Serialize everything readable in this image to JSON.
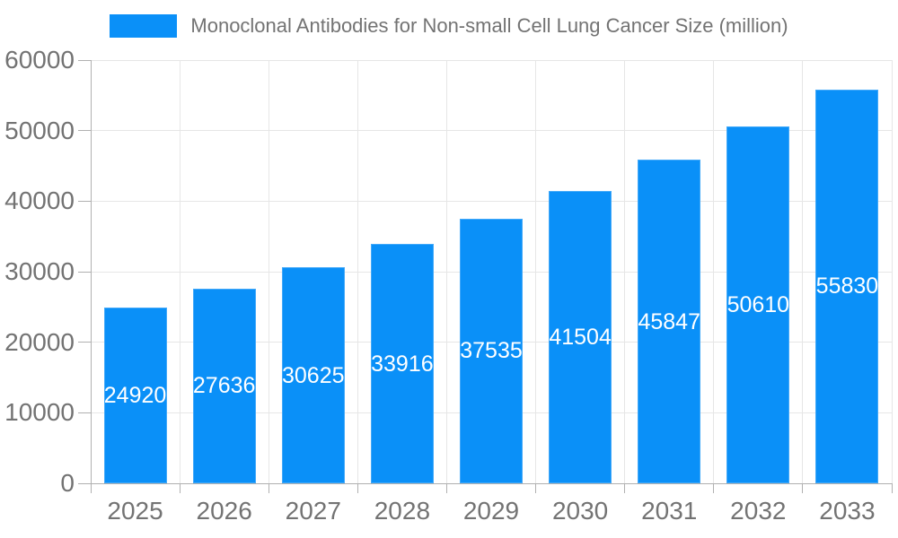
{
  "chart_data": {
    "type": "bar",
    "legend": "Monoclonal Antibodies for Non-small Cell Lung Cancer Size (million)",
    "categories": [
      "2025",
      "2026",
      "2027",
      "2028",
      "2029",
      "2030",
      "2031",
      "2032",
      "2033"
    ],
    "values": [
      24920,
      27636,
      30625,
      33916,
      37535,
      41504,
      45847,
      50610,
      55830
    ],
    "value_labels": [
      "24920",
      "27636",
      "30625",
      "33916",
      "37535",
      "41504",
      "45847",
      "50610",
      "55830"
    ],
    "title": "",
    "xlabel": "",
    "ylabel": "",
    "ylim": [
      0,
      60000
    ],
    "y_ticks": [
      0,
      10000,
      20000,
      30000,
      40000,
      50000,
      60000
    ],
    "y_tick_labels": [
      "0",
      "10000",
      "20000",
      "30000",
      "40000",
      "50000",
      "60000"
    ],
    "grid": true,
    "legend_position": "top",
    "value_label_position": "inside-center",
    "colors": {
      "bar": "#0a90f8",
      "bar_edge": "#43a9f9",
      "grid": "#e6e6e6",
      "axis": "#b0b0b0",
      "tick_text": "#737373",
      "legend_text": "#737373",
      "value_label_text": "#ffffff",
      "background": "#ffffff"
    }
  }
}
